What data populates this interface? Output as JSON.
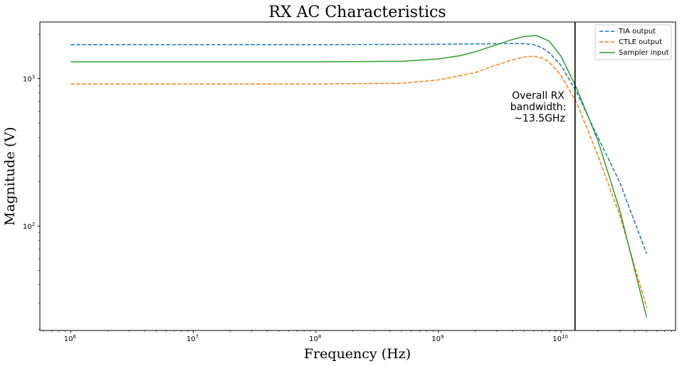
{
  "chart_data": {
    "type": "line",
    "title": "RX AC Characteristics",
    "xlabel": "Frequency (Hz)",
    "ylabel": "Magnitude (V)",
    "xscale": "log",
    "yscale": "log",
    "xlim": [
      560000,
      86000000000
    ],
    "ylim": [
      19.6,
      2420
    ],
    "x_ticks": [
      {
        "value": 1000000,
        "base": "10",
        "exp": "6"
      },
      {
        "value": 10000000,
        "base": "10",
        "exp": "7"
      },
      {
        "value": 100000000,
        "base": "10",
        "exp": "8"
      },
      {
        "value": 1000000000,
        "base": "10",
        "exp": "9"
      },
      {
        "value": 10000000000,
        "base": "10",
        "exp": "10"
      }
    ],
    "y_ticks": [
      {
        "value": 100,
        "base": "10",
        "exp": "2"
      },
      {
        "value": 1000,
        "base": "10",
        "exp": "3"
      }
    ],
    "grid": false,
    "legend": "top-right",
    "series": [
      {
        "name": "TIA output",
        "color": "#1f77b4",
        "dash": "dashed",
        "x": [
          1000000,
          10000000,
          100000000,
          1000000000,
          2000000000,
          3000000000,
          4000000000,
          5000000000,
          6000000000,
          7000000000,
          8000000000,
          10000000000,
          13500000000,
          20000000000,
          30000000000,
          50000000000
        ],
        "y": [
          1700,
          1700,
          1700,
          1710,
          1720,
          1728,
          1730,
          1725,
          1700,
          1620,
          1500,
          1230,
          800,
          400,
          200,
          65
        ]
      },
      {
        "name": "CTLE output",
        "color": "#ff7f0e",
        "dash": "dashed",
        "x": [
          1000000,
          10000000,
          100000000,
          500000000,
          1000000000,
          2000000000,
          3000000000,
          4000000000,
          5000000000,
          6000000000,
          7000000000,
          8000000000,
          10000000000,
          13500000000,
          20000000000,
          30000000000,
          50000000000
        ],
        "y": [
          920,
          920,
          920,
          930,
          980,
          1100,
          1240,
          1340,
          1400,
          1420,
          1380,
          1300,
          1050,
          680,
          300,
          120,
          28
        ]
      },
      {
        "name": "Sampler input",
        "color": "#2ca02c",
        "dash": "solid",
        "x": [
          1000000,
          10000000,
          100000000,
          500000000,
          1000000000,
          1500000000,
          2000000000,
          3000000000,
          4000000000,
          5000000000,
          6300000000,
          8000000000,
          10000000000,
          13500000000,
          20000000000,
          30000000000,
          50000000000
        ],
        "y": [
          1300,
          1300,
          1300,
          1310,
          1360,
          1430,
          1520,
          1700,
          1840,
          1930,
          1960,
          1800,
          1420,
          850,
          380,
          130,
          24
        ]
      }
    ],
    "vline": {
      "x": 13000000000,
      "color": "#000000"
    },
    "annotation": {
      "lines": [
        "Overall RX",
        "bandwidth:",
        "~13.5GHz"
      ]
    }
  }
}
